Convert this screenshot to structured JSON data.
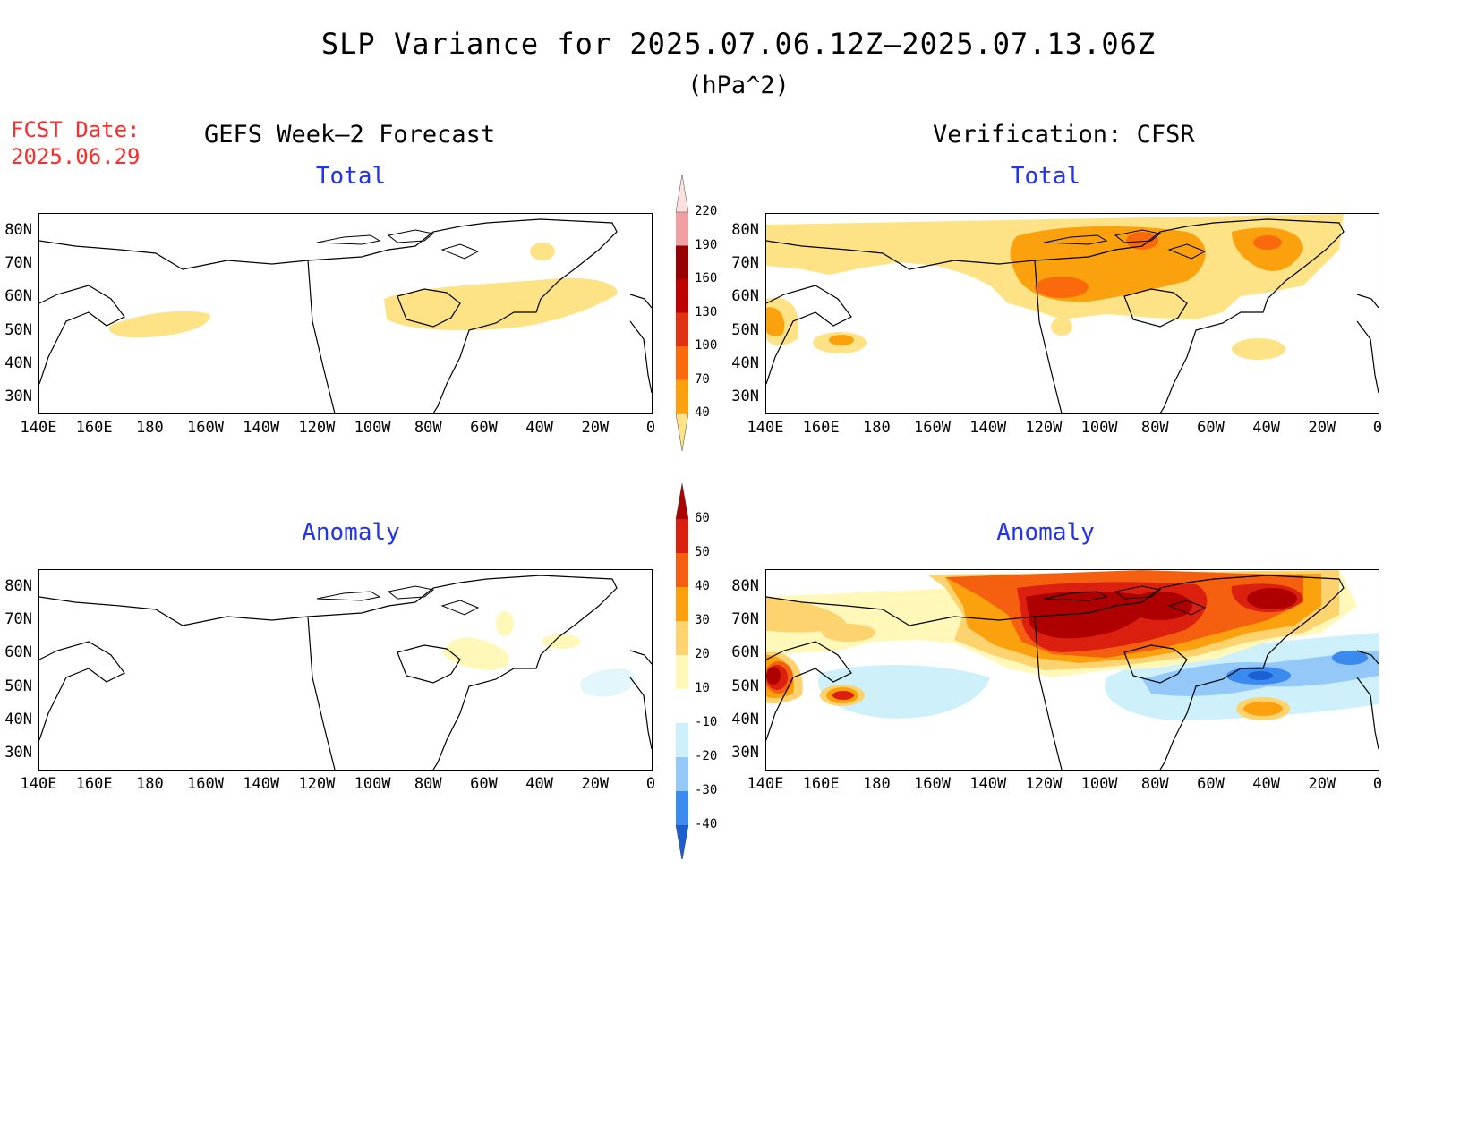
{
  "title": "SLP Variance for 2025.07.06.12Z–2025.07.13.06Z",
  "units": "(hPa^2)",
  "fcst_date": {
    "label": "FCST Date:",
    "value": "2025.06.29"
  },
  "columns": {
    "left": "GEFS Week–2 Forecast",
    "right": "Verification: CFSR"
  },
  "panels": {
    "forecast_total": {
      "title": "Total"
    },
    "verification_total": {
      "title": "Total"
    },
    "forecast_anomaly": {
      "title": "Anomaly"
    },
    "verification_anomaly": {
      "title": "Anomaly"
    }
  },
  "lat_labels": [
    "80N",
    "70N",
    "60N",
    "50N",
    "40N",
    "30N"
  ],
  "lon_labels": [
    "140E",
    "160E",
    "180",
    "160W",
    "140W",
    "120W",
    "100W",
    "80W",
    "60W",
    "40W",
    "20W",
    "0"
  ],
  "colorbar_total": {
    "levels": [
      "40",
      "70",
      "100",
      "130",
      "160",
      "190",
      "220"
    ],
    "colors": [
      "#fee386",
      "#fba10e",
      "#fa6a0c",
      "#e23012",
      "#c00000",
      "#970000",
      "#f0a0a0",
      "#fde0e0"
    ]
  },
  "colorbar_anomaly": {
    "levels": [
      "-40",
      "-30",
      "-20",
      "-10",
      "10",
      "20",
      "30",
      "40",
      "50",
      "60"
    ],
    "colors": [
      "#1a60d2",
      "#3a8af0",
      "#94c8f8",
      "#cef0fa",
      "#ffffff",
      "#fff8b8",
      "#fdd370",
      "#fba10e",
      "#f46010",
      "#dc2010",
      "#ae0000"
    ]
  }
}
